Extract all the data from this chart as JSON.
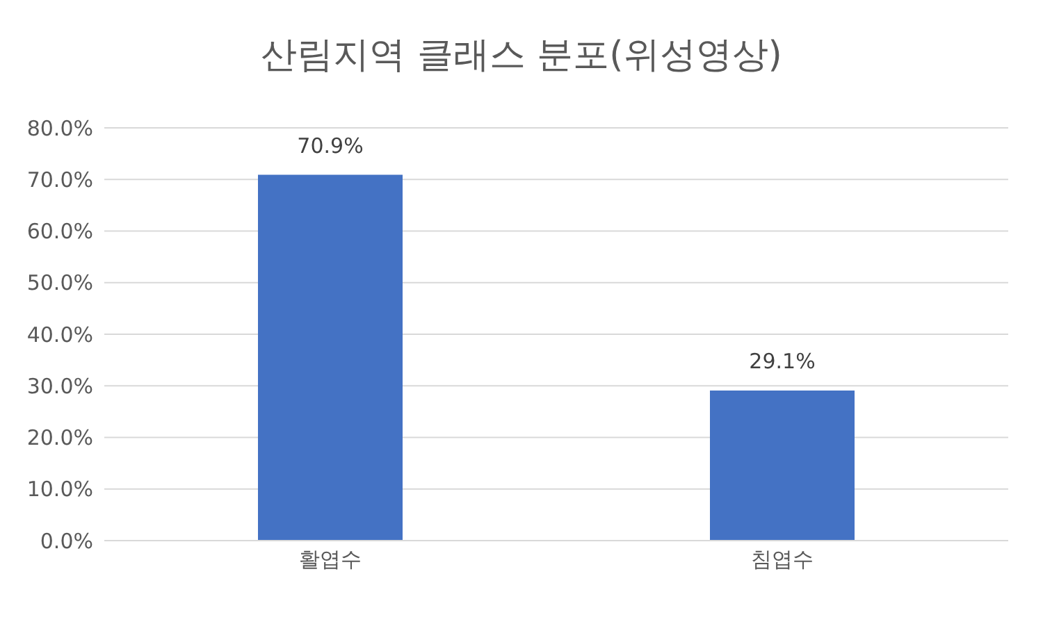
{
  "chart_data": {
    "type": "bar",
    "title": "산림지역 클래스 분포(위성영상)",
    "categories": [
      "활엽수",
      "침엽수"
    ],
    "values": [
      70.9,
      29.1
    ],
    "color": "#4472c4",
    "value_labels": [
      "70.9%",
      "29.1%"
    ],
    "ylim": [
      0,
      80
    ],
    "yticks": [
      {
        "value": 0,
        "label": "0.0%"
      },
      {
        "value": 10,
        "label": "10.0%"
      },
      {
        "value": 20,
        "label": "20.0%"
      },
      {
        "value": 30,
        "label": "30.0%"
      },
      {
        "value": 40,
        "label": "40.0%"
      },
      {
        "value": 50,
        "label": "50.0%"
      },
      {
        "value": 60,
        "label": "60.0%"
      },
      {
        "value": 70,
        "label": "70.0%"
      },
      {
        "value": 80,
        "label": "80.0%"
      }
    ],
    "grid": "y",
    "legend": false
  }
}
